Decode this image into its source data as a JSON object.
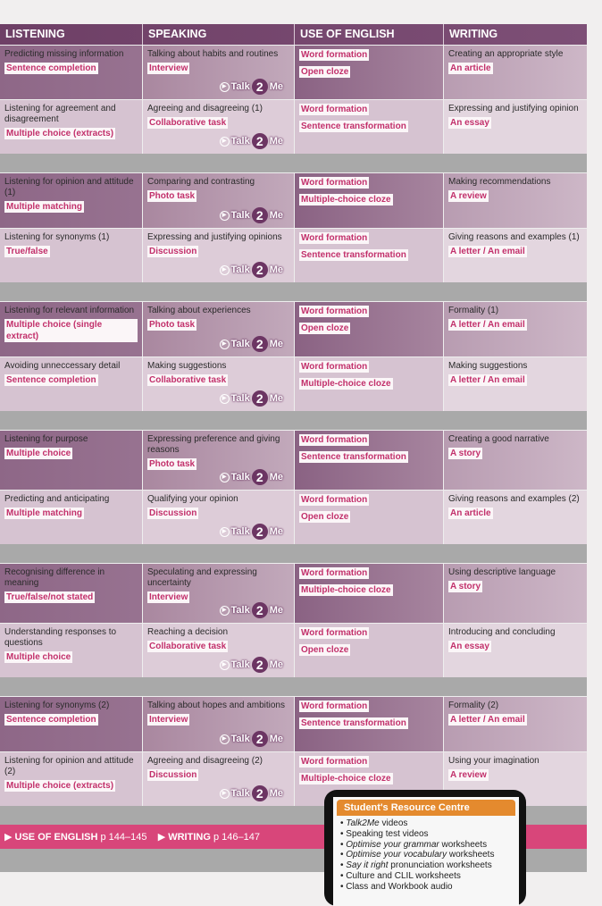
{
  "headers": [
    "LISTENING",
    "SPEAKING",
    "USE OF ENGLISH",
    "WRITING"
  ],
  "talk2me": {
    "pre": "Talk",
    "num": "2",
    "post": "Me"
  },
  "units": [
    [
      {
        "l": [
          "Predicting missing information",
          "Sentence completion"
        ],
        "s": [
          "Talking about habits and routines",
          "Interview"
        ],
        "u": [
          "Word formation",
          "Open cloze"
        ],
        "w": [
          "Creating an appropriate style",
          "An article"
        ]
      },
      {
        "l": [
          "Listening for agreement and disagreement",
          "Multiple choice (extracts)"
        ],
        "s": [
          "Agreeing and disagreeing (1)",
          "Collaborative task"
        ],
        "u": [
          "Word formation",
          "Sentence transformation"
        ],
        "w": [
          "Expressing and justifying opinion",
          "An essay"
        ]
      }
    ],
    [
      {
        "l": [
          "Listening for opinion and attitude (1)",
          "Multiple matching"
        ],
        "s": [
          "Comparing and contrasting",
          "Photo task"
        ],
        "u": [
          "Word formation",
          "Multiple-choice cloze"
        ],
        "w": [
          "Making recommendations",
          "A review"
        ]
      },
      {
        "l": [
          "Listening for synonyms (1)",
          "True/false"
        ],
        "s": [
          "Expressing and justifying opinions",
          "Discussion"
        ],
        "u": [
          "Word formation",
          "Sentence transformation"
        ],
        "w": [
          "Giving reasons and examples (1)",
          "A letter / An email"
        ]
      }
    ],
    [
      {
        "l": [
          "Listening for relevant information",
          "Multiple choice (single extract)"
        ],
        "s": [
          "Talking about experiences",
          "Photo task"
        ],
        "u": [
          "Word formation",
          "Open cloze"
        ],
        "w": [
          "Formality (1)",
          "A letter / An email"
        ]
      },
      {
        "l": [
          "Avoiding unneccessary detail",
          "Sentence completion"
        ],
        "s": [
          "Making suggestions",
          "Collaborative task"
        ],
        "u": [
          "Word formation",
          "Multiple-choice cloze"
        ],
        "w": [
          "Making suggestions",
          "A letter / An email"
        ]
      }
    ],
    [
      {
        "l": [
          "Listening for purpose",
          "Multiple choice"
        ],
        "s": [
          "Expressing preference and giving reasons",
          "Photo task"
        ],
        "u": [
          "Word formation",
          "Sentence transformation"
        ],
        "w": [
          "Creating a good narrative",
          "A story"
        ]
      },
      {
        "l": [
          "Predicting and anticipating",
          "Multiple matching"
        ],
        "s": [
          "Qualifying your opinion",
          "Discussion"
        ],
        "u": [
          "Word formation",
          "Open cloze"
        ],
        "w": [
          "Giving reasons and examples (2)",
          "An article"
        ]
      }
    ],
    [
      {
        "l": [
          "Recognising difference in meaning",
          "True/false/not stated"
        ],
        "s": [
          "Speculating and expressing uncertainty",
          "Interview"
        ],
        "u": [
          "Word formation",
          "Multiple-choice cloze"
        ],
        "w": [
          "Using descriptive language",
          "A story"
        ]
      },
      {
        "l": [
          "Understanding responses to questions",
          "Multiple choice"
        ],
        "s": [
          "Reaching a decision",
          "Collaborative task"
        ],
        "u": [
          "Word formation",
          "Open cloze"
        ],
        "w": [
          "Introducing and concluding",
          "An essay"
        ]
      }
    ],
    [
      {
        "l": [
          "Listening for synonyms (2)",
          "Sentence completion"
        ],
        "s": [
          "Talking about hopes and ambitions",
          "Interview"
        ],
        "u": [
          "Word formation",
          "Sentence transformation"
        ],
        "w": [
          "Formality (2)",
          "A letter / An email"
        ]
      },
      {
        "l": [
          "Listening for opinion and attitude (2)",
          "Multiple choice (extracts)"
        ],
        "s": [
          "Agreeing and disagreeing (2)",
          "Discussion"
        ],
        "u": [
          "Word formation",
          "Multiple-choice cloze"
        ],
        "w": [
          "Using your imagination",
          "A review"
        ]
      }
    ]
  ],
  "footer_bar": [
    {
      "label": "USE OF ENGLISH",
      "pages": "p 144–145"
    },
    {
      "label": "WRITING",
      "pages": "p 146–147"
    }
  ],
  "resource_centre": {
    "title": "Student's Resource Centre",
    "items": [
      {
        "em": "Talk2Me",
        "rest": " videos"
      },
      {
        "em": "",
        "rest": "Speaking test videos"
      },
      {
        "em": "Optimise your grammar",
        "rest": " worksheets"
      },
      {
        "em": "Optimise your vocabulary",
        "rest": " worksheets"
      },
      {
        "em": "Say it right",
        "rest": " pronunciation worksheets"
      },
      {
        "em": "",
        "rest": "Culture and CLIL worksheets"
      },
      {
        "em": "",
        "rest": "Class and Workbook audio"
      }
    ]
  }
}
